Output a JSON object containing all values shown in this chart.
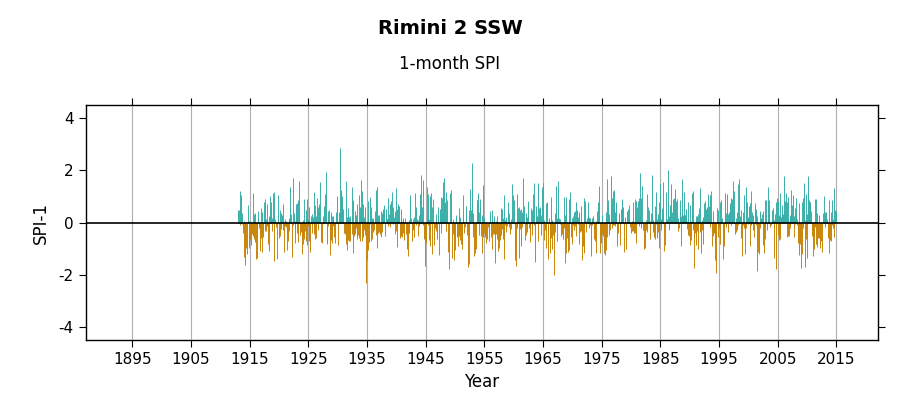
{
  "title": "Rimini 2 SSW",
  "subtitle": "1-month SPI",
  "ylabel": "SPI-1",
  "xlabel": "Year",
  "ylim": [
    -4.5,
    4.5
  ],
  "yticks": [
    -4,
    -2,
    0,
    2,
    4
  ],
  "xlim": [
    1887,
    2022
  ],
  "xticks": [
    1895,
    1905,
    1915,
    1925,
    1935,
    1945,
    1955,
    1965,
    1975,
    1985,
    1995,
    2005,
    2015
  ],
  "data_start_year": 1913,
  "data_end_year": 2014,
  "color_positive": "#3aafa9",
  "color_negative": "#c8860a",
  "grid_color": "#b0b0b0",
  "background_color": "#ffffff",
  "zero_line_color": "#000000",
  "title_fontsize": 14,
  "subtitle_fontsize": 12,
  "axis_label_fontsize": 12,
  "tick_fontsize": 11,
  "seed": 42
}
